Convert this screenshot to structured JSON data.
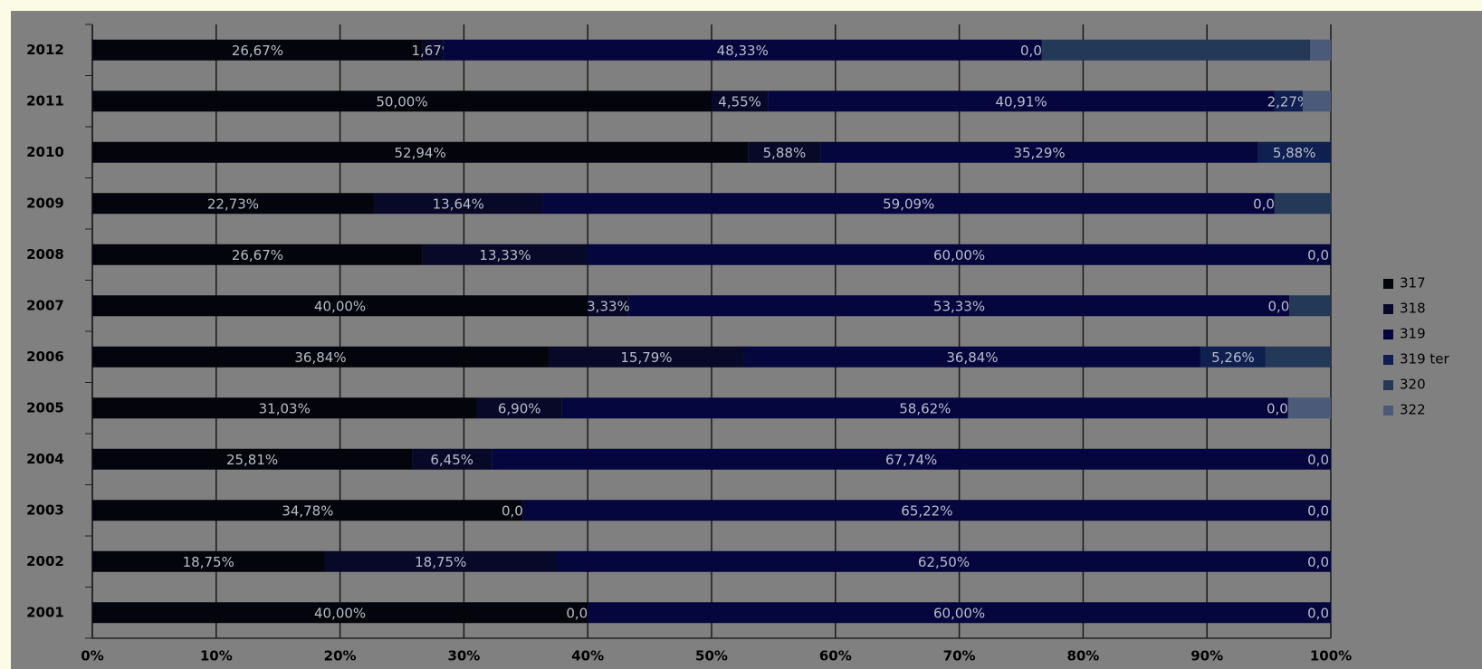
{
  "chart_data": {
    "type": "stacked-barh",
    "categories": [
      "2012",
      "2011",
      "2010",
      "2009",
      "2008",
      "2007",
      "2006",
      "2005",
      "2004",
      "2003",
      "2002",
      "2001"
    ],
    "series": [
      {
        "name": "317",
        "color": "#04040c",
        "values": [
          26.67,
          50,
          52.94,
          22.73,
          26.67,
          40,
          36.84,
          31.03,
          25.81,
          34.78,
          18.75,
          40
        ],
        "value_labels": [
          "26,67%",
          "50,00%",
          "52,94%",
          "22,73%",
          "26,67%",
          "40,00%",
          "36,84%",
          "31,03%",
          "25,81%",
          "34,78%",
          "18,75%",
          "40,00%"
        ]
      },
      {
        "name": "318",
        "color": "#080828",
        "values": [
          1.67,
          4.55,
          5.88,
          13.64,
          13.33,
          3.33,
          15.79,
          6.9,
          6.45,
          0,
          18.75,
          0
        ],
        "value_labels": [
          "1,67%",
          "4,55%",
          "5,88%",
          "13,64%",
          "13,33%",
          "3,33%",
          "15,79%",
          "6,90%",
          "6,45%",
          "0,00%",
          "18,75%",
          "0,00%"
        ]
      },
      {
        "name": "319",
        "color": "#06063e",
        "values": [
          48.33,
          40.91,
          35.29,
          59.09,
          60,
          53.33,
          36.84,
          58.62,
          67.74,
          65.22,
          62.5,
          60
        ],
        "value_labels": [
          "48,33%",
          "40,91%",
          "35,29%",
          "59,09%",
          "60,00%",
          "53,33%",
          "36,84%",
          "58,62%",
          "67,74%",
          "65,22%",
          "62,50%",
          "60,00%"
        ]
      },
      {
        "name": "319 ter",
        "color": "#0f1f50",
        "values": [
          0,
          2.27,
          5.88,
          0,
          0,
          0,
          5.26,
          0,
          0,
          0,
          0,
          0
        ],
        "value_labels": [
          "0,00%",
          "2,27%",
          "5,88%",
          "0,00%",
          "0,0",
          "0,00%",
          "5,26%",
          "0,00%",
          "0,0",
          "0,0",
          "0,0",
          "0,0"
        ]
      },
      {
        "name": "320",
        "color": "#243858",
        "values": [
          21.67,
          0,
          0,
          4.55,
          0,
          3.33,
          5.26,
          0,
          0,
          0,
          0,
          0
        ],
        "value_labels": [
          null,
          null,
          null,
          null,
          null,
          null,
          null,
          null,
          null,
          null,
          null,
          null
        ]
      },
      {
        "name": "322",
        "color": "#4b5a78",
        "values": [
          1.67,
          2.27,
          0,
          0,
          0,
          0,
          0,
          3.45,
          0,
          0,
          0,
          0
        ],
        "value_labels": [
          null,
          null,
          null,
          null,
          null,
          null,
          null,
          null,
          null,
          null,
          null,
          null
        ]
      }
    ],
    "xlim": [
      0,
      100
    ],
    "xticks": [
      {
        "value": 0,
        "label": "0%"
      },
      {
        "value": 10,
        "label": "10%"
      },
      {
        "value": 20,
        "label": "20%"
      },
      {
        "value": 30,
        "label": "30%"
      },
      {
        "value": 40,
        "label": "40%"
      },
      {
        "value": 50,
        "label": "50%"
      },
      {
        "value": 60,
        "label": "60%"
      },
      {
        "value": 70,
        "label": "70%"
      },
      {
        "value": 80,
        "label": "80%"
      },
      {
        "value": 90,
        "label": "90%"
      },
      {
        "value": 100,
        "label": "100%"
      }
    ],
    "grid": true,
    "legend": "right"
  }
}
